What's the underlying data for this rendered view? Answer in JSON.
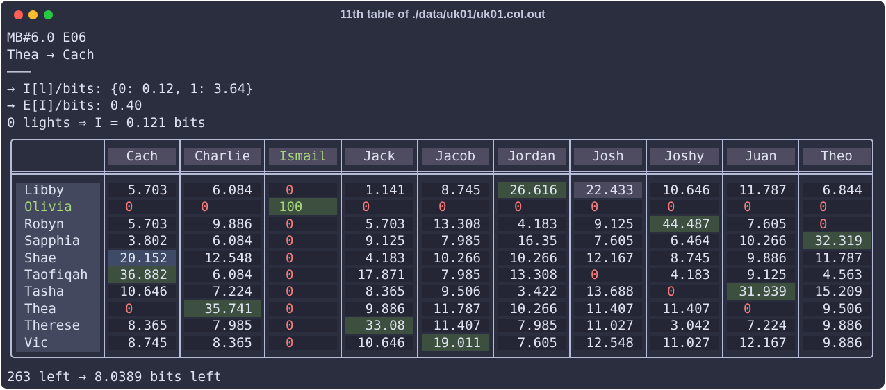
{
  "window": {
    "title": "11th table of ./data/uk01/uk01.col.out"
  },
  "header_lines": [
    "MB#6.0 E06",
    "Thea → Cach",
    "———",
    "→ I[l]/bits: {0: 0.12, 1: 3.64}",
    "→ E[I]/bits: 0.40",
    "0 lights ⇒ I = 0.121 bits"
  ],
  "table": {
    "columns": [
      "Cach",
      "Charlie",
      "Ismail",
      "Jack",
      "Jacob",
      "Jordan",
      "Josh",
      "Joshy",
      "Juan",
      "Theo"
    ],
    "highlighted_column": "Ismail",
    "rows": [
      {
        "name": "Libby",
        "values": [
          "5.703",
          "6.084",
          "0",
          "1.141",
          "8.745",
          "26.616",
          "22.433",
          "10.646",
          "11.787",
          "6.844"
        ]
      },
      {
        "name": "Olivia",
        "values": [
          "0",
          "0",
          "100",
          "0",
          "0",
          "0",
          "0",
          "0",
          "0",
          "0"
        ]
      },
      {
        "name": "Robyn",
        "values": [
          "5.703",
          "9.886",
          "0",
          "5.703",
          "13.308",
          "4.183",
          "9.125",
          "44.487",
          "7.605",
          "0"
        ]
      },
      {
        "name": "Sapphia",
        "values": [
          "3.802",
          "6.084",
          "0",
          "9.125",
          "7.985",
          "16.35",
          "7.605",
          "6.464",
          "10.266",
          "32.319"
        ]
      },
      {
        "name": "Shae",
        "values": [
          "20.152",
          "12.548",
          "0",
          "4.183",
          "10.266",
          "10.266",
          "12.167",
          "8.745",
          "9.886",
          "11.787"
        ]
      },
      {
        "name": "Taofiqah",
        "values": [
          "36.882",
          "6.084",
          "0",
          "17.871",
          "7.985",
          "13.308",
          "0",
          "4.183",
          "9.125",
          "4.563"
        ]
      },
      {
        "name": "Tasha",
        "values": [
          "10.646",
          "7.224",
          "0",
          "8.365",
          "9.506",
          "3.422",
          "13.688",
          "0",
          "31.939",
          "15.209"
        ]
      },
      {
        "name": "Thea",
        "values": [
          "0",
          "35.741",
          "0",
          "9.886",
          "11.787",
          "10.266",
          "11.407",
          "11.407",
          "0",
          "9.506"
        ]
      },
      {
        "name": "Therese",
        "values": [
          "8.365",
          "7.985",
          "0",
          "33.08",
          "11.407",
          "7.985",
          "11.027",
          "3.042",
          "7.224",
          "9.886"
        ]
      },
      {
        "name": "Vic",
        "values": [
          "8.745",
          "8.365",
          "0",
          "10.646",
          "19.011",
          "7.605",
          "12.548",
          "11.027",
          "12.167",
          "9.886"
        ]
      }
    ]
  },
  "footer": "263 left → 8.0389 bits left",
  "colors": {
    "background": "#2b2e3f",
    "text": "#dfe2f0",
    "zero_value": "#f17b78",
    "highlight_text": "#a7d67c",
    "green_cell": "#3d5040",
    "purple_cell": "#4b4a5e",
    "blue_cell": "#3f4a66",
    "header_cell": "#4f4b61",
    "border": "#b6bcd8"
  }
}
